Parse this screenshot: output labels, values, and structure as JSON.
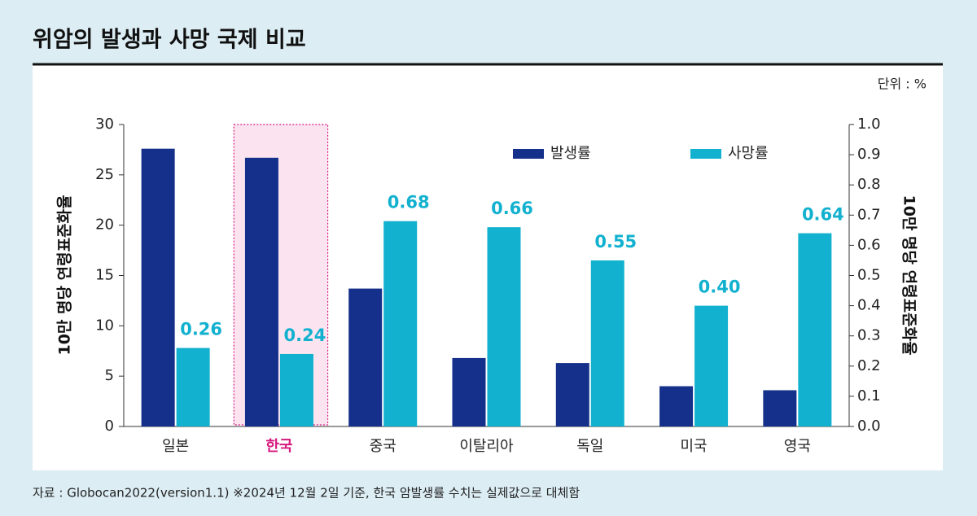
{
  "chart_data": {
    "type": "bar",
    "title": "위암의 발생과 사망 국제 비교",
    "unit_note": "단위 : %",
    "source": "자료 : Globocan2022(version1.1) ※2024년 12월 2일 기준, 한국 암발생률 수치는 실제값으로 대체함",
    "y_label": "10만 명당 연령표준화율",
    "y2_label": "10만 명당 연령표준화율",
    "categories": [
      "일본",
      "한국",
      "중국",
      "이탈리아",
      "독일",
      "미국",
      "영국"
    ],
    "series": [
      {
        "name": "발생률",
        "color": "#14308a",
        "values": [
          27.6,
          26.7,
          13.7,
          6.8,
          6.3,
          4.0,
          3.6
        ]
      },
      {
        "name": "사망률",
        "color": "#12b1cf",
        "axis": "y2",
        "values": [
          0.26,
          0.24,
          0.68,
          0.66,
          0.55,
          0.4,
          0.64
        ],
        "value_labels": [
          "0.26",
          "0.24",
          "0.68",
          "0.66",
          "0.55",
          "0.40",
          "0.64"
        ]
      }
    ],
    "ylim": [
      0,
      30
    ],
    "yticks": [
      0,
      5,
      10,
      15,
      20,
      25,
      30
    ],
    "y2lim": [
      0,
      1
    ],
    "y2ticks": [
      {
        "value": 0,
        "label": "0.0"
      },
      0.1,
      0.2,
      0.3,
      0.4,
      0.5,
      0.6,
      0.7,
      0.8,
      0.9,
      {
        "value": 1,
        "label": "1.0"
      }
    ],
    "legend": "top-right"
  }
}
